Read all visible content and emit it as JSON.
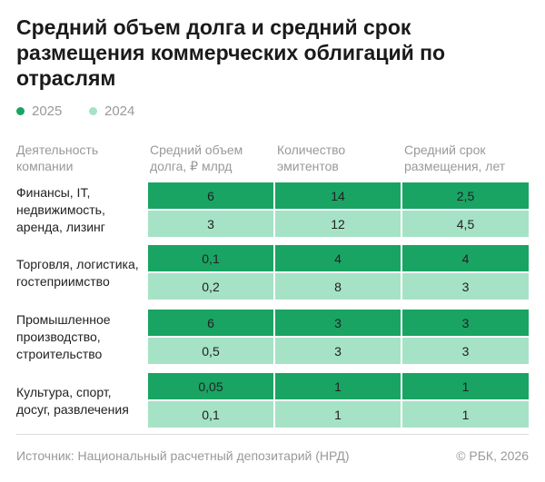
{
  "header": {
    "title": "Средний объем долга и средний срок размещения коммерческих облигаций по отраслям"
  },
  "legend": [
    "2025",
    "2024"
  ],
  "table": {
    "columns": [
      "Деятельность компании",
      "Средний объем долга, ₽ млрд",
      "Количество эмитентов",
      "Средний срок размещения, лет"
    ],
    "groups": [
      {
        "label": "Финансы, IT, недвижимость, аренда, лизинг",
        "rows": [
          [
            "6",
            "14",
            "2,5"
          ],
          [
            "3",
            "12",
            "4,5"
          ]
        ]
      },
      {
        "label": "Торговля, логистика, гостеприимство",
        "rows": [
          [
            "0,1",
            "4",
            "4"
          ],
          [
            "0,2",
            "8",
            "3"
          ]
        ]
      },
      {
        "label": "Промышленное производство, строительство",
        "rows": [
          [
            "6",
            "3",
            "3"
          ],
          [
            "0,5",
            "3",
            "3"
          ]
        ]
      },
      {
        "label": "Культура, спорт, досуг, развлечения",
        "rows": [
          [
            "0,05",
            "1",
            "1"
          ],
          [
            "0,1",
            "1",
            "1"
          ]
        ]
      }
    ]
  },
  "footer": {
    "source": "Источник: Национальный расчетный депозитарий (НРД)",
    "copyright": "© РБК, 2026"
  }
}
